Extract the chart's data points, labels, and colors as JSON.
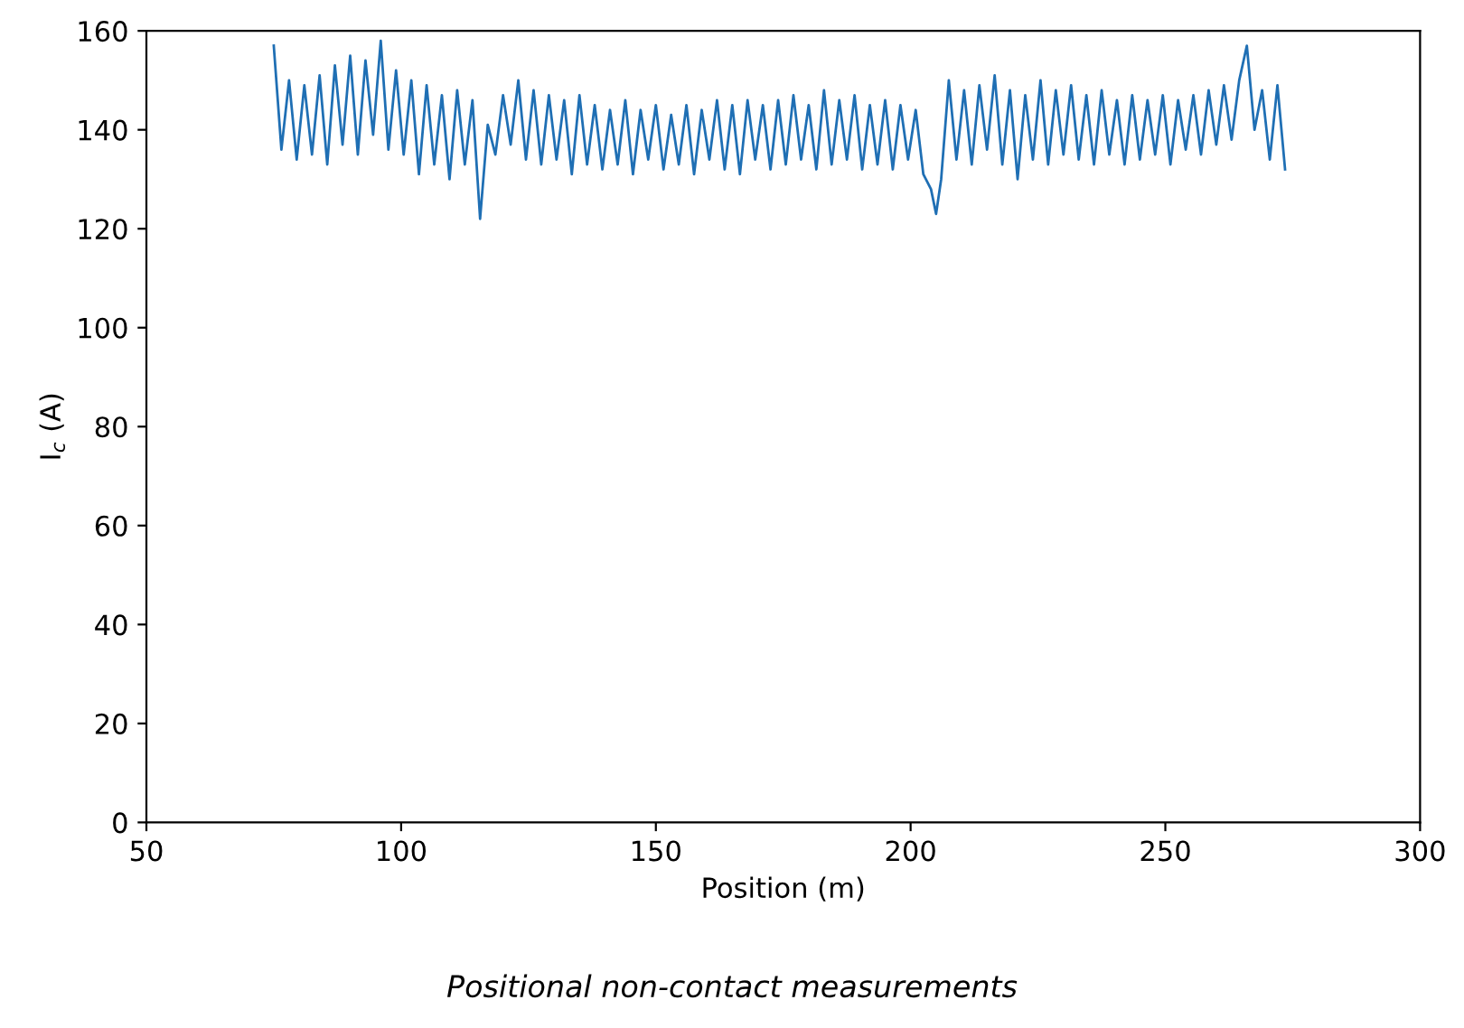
{
  "chart_data": {
    "type": "line",
    "xlabel": "Position (m)",
    "ylabel": "I$_{c}$ (A)",
    "annotations": [
      "Positional non-contact measurements"
    ],
    "xlim": [
      50,
      300
    ],
    "xticks": [
      50,
      100,
      150,
      200,
      250,
      300
    ],
    "ylim": [
      0,
      160
    ],
    "yticks": [
      0,
      20,
      40,
      60,
      80,
      100,
      120,
      140,
      160
    ],
    "marker": "none",
    "line_style": "solid",
    "series": [
      {
        "color": "#1f6fb4",
        "x": [
          75,
          76.5,
          78,
          79.5,
          81,
          82.5,
          84,
          85.5,
          87,
          88.5,
          90,
          91.5,
          93,
          94.5,
          96,
          97.5,
          99,
          100.5,
          102,
          103.5,
          105,
          106.5,
          108,
          109.5,
          111,
          112.5,
          114,
          115.5,
          117,
          118.5,
          120,
          121.5,
          123,
          124.5,
          126,
          127.5,
          129,
          130.5,
          132,
          133.5,
          135,
          136.5,
          138,
          139.5,
          141,
          142.5,
          144,
          145.5,
          147,
          148.5,
          150,
          151.5,
          153,
          154.5,
          156,
          157.5,
          159,
          160.5,
          162,
          163.5,
          165,
          166.5,
          168,
          169.5,
          171,
          172.5,
          174,
          175.5,
          177,
          178.5,
          180,
          181.5,
          183,
          184.5,
          186,
          187.5,
          189,
          190.5,
          192,
          193.5,
          195,
          196.5,
          198,
          199.5,
          201,
          202.5,
          204,
          205,
          206,
          207.5,
          209,
          210.5,
          212,
          213.5,
          215,
          216.5,
          218,
          219.5,
          221,
          222.5,
          224,
          225.5,
          227,
          228.5,
          230,
          231.5,
          233,
          234.5,
          236,
          237.5,
          239,
          240.5,
          242,
          243.5,
          245,
          246.5,
          248,
          249.5,
          251,
          252.5,
          254,
          255.5,
          257,
          258.5,
          260,
          261.5,
          263,
          264.5,
          266,
          267.5,
          269,
          270.5,
          272,
          273.5
        ],
        "values": [
          157,
          136,
          150,
          134,
          149,
          135,
          151,
          133,
          153,
          137,
          155,
          135,
          154,
          139,
          158,
          136,
          152,
          135,
          150,
          131,
          149,
          133,
          147,
          130,
          148,
          133,
          146,
          122,
          141,
          135,
          147,
          137,
          150,
          134,
          148,
          133,
          147,
          134,
          146,
          131,
          147,
          133,
          145,
          132,
          144,
          133,
          146,
          131,
          144,
          134,
          145,
          132,
          143,
          133,
          145,
          131,
          144,
          134,
          146,
          132,
          145,
          131,
          146,
          134,
          145,
          132,
          146,
          133,
          147,
          134,
          145,
          132,
          148,
          133,
          146,
          134,
          147,
          132,
          145,
          133,
          146,
          132,
          145,
          134,
          144,
          131,
          128,
          123,
          130,
          150,
          134,
          148,
          133,
          149,
          136,
          151,
          133,
          148,
          130,
          147,
          134,
          150,
          133,
          148,
          135,
          149,
          134,
          147,
          133,
          148,
          135,
          146,
          133,
          147,
          134,
          146,
          135,
          147,
          133,
          146,
          136,
          147,
          135,
          148,
          137,
          149,
          138,
          150,
          157,
          140,
          148,
          134,
          149,
          132
        ]
      }
    ]
  }
}
